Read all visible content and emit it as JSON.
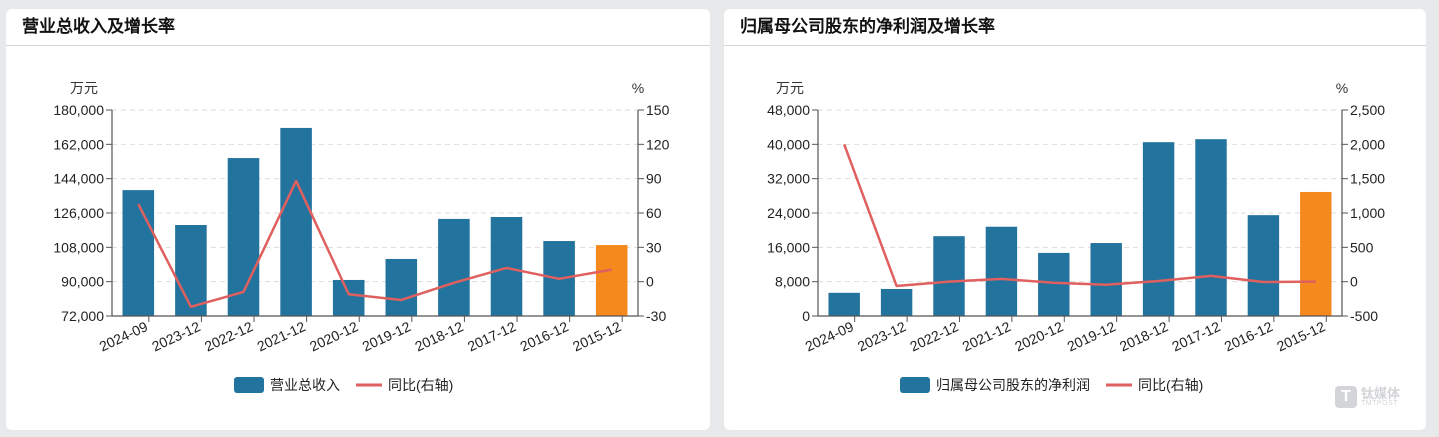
{
  "panels": [
    {
      "title": "营业总收入及增长率",
      "left_unit": "万元",
      "right_unit": "%",
      "legend_bar": "营业总收入",
      "legend_line": "同比(右轴)"
    },
    {
      "title": "归属母公司股东的净利润及增长率",
      "left_unit": "万元",
      "right_unit": "%",
      "legend_bar": "归属母公司股东的净利润",
      "legend_line": "同比(右轴)"
    }
  ],
  "watermark": {
    "cn": "钛媒体",
    "en": "TMTPOST",
    "logo": "T"
  },
  "colors": {
    "bar": "#23739f",
    "bar_highlight": "#f5891e",
    "line": "#e05f5f",
    "grid": "#dddddd",
    "axis": "#555555"
  },
  "chart_data": [
    {
      "type": "bar+line",
      "title": "营业总收入及增长率",
      "categories": [
        "2024-09",
        "2023-12",
        "2022-12",
        "2021-12",
        "2020-12",
        "2019-12",
        "2018-12",
        "2017-12",
        "2016-12",
        "2015-12"
      ],
      "series": [
        {
          "name": "营业总收入",
          "axis": "left",
          "type": "bar",
          "values": [
            138000,
            119700,
            154800,
            170600,
            90900,
            101900,
            122900,
            123900,
            111300,
            109200
          ]
        },
        {
          "name": "同比(右轴)",
          "axis": "right",
          "type": "line",
          "values": [
            67.8,
            -22,
            -9,
            88,
            -11,
            -16,
            -1,
            12,
            2.5,
            10.5
          ]
        }
      ],
      "ylabel_left": "万元",
      "ylabel_right": "%",
      "ylim_left": [
        72000,
        180000
      ],
      "yticks_left": [
        "72,000",
        "90,000",
        "108,000",
        "126,000",
        "144,000",
        "162,000",
        "180,000"
      ],
      "ylim_right": [
        -30,
        150
      ],
      "yticks_right": [
        "-30",
        "0",
        "30",
        "60",
        "90",
        "120",
        "150"
      ],
      "highlight_index": 9,
      "legend": [
        "营业总收入",
        "同比(右轴)"
      ],
      "legend_position": "bottom",
      "grid": true
    },
    {
      "type": "bar+line",
      "title": "归属母公司股东的净利润及增长率",
      "categories": [
        "2024-09",
        "2023-12",
        "2022-12",
        "2021-12",
        "2020-12",
        "2019-12",
        "2018-12",
        "2017-12",
        "2016-12",
        "2015-12"
      ],
      "series": [
        {
          "name": "归属母公司股东的净利润",
          "axis": "left",
          "type": "bar",
          "values": [
            5400,
            6300,
            18600,
            20800,
            14700,
            17000,
            40500,
            41200,
            23500,
            28900
          ]
        },
        {
          "name": "同比(右轴)",
          "axis": "right",
          "type": "line",
          "values": [
            2000,
            -63,
            0,
            40,
            -15,
            -45,
            10,
            85,
            -5,
            0
          ]
        }
      ],
      "ylabel_left": "万元",
      "ylabel_right": "%",
      "ylim_left": [
        0,
        48000
      ],
      "yticks_left": [
        "0",
        "8,000",
        "16,000",
        "24,000",
        "32,000",
        "40,000",
        "48,000"
      ],
      "ylim_right": [
        -500,
        2500
      ],
      "yticks_right": [
        "-500",
        "0",
        "500",
        "1,000",
        "1,500",
        "2,000",
        "2,500"
      ],
      "highlight_index": 9,
      "legend": [
        "归属母公司股东的净利润",
        "同比(右轴)"
      ],
      "legend_position": "bottom",
      "grid": true
    }
  ]
}
